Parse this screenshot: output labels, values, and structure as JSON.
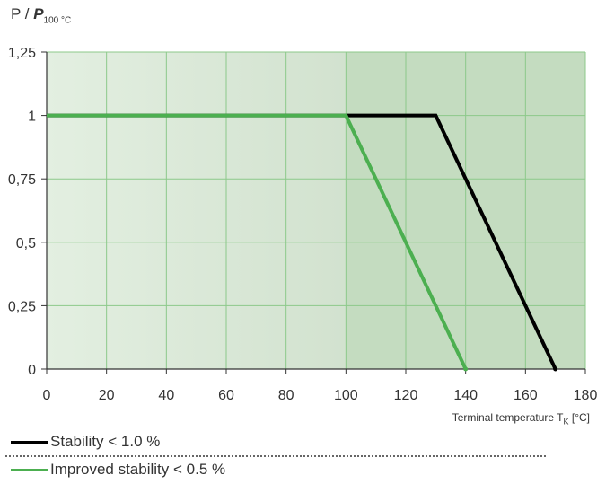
{
  "chart_data": {
    "type": "line",
    "ylabel": {
      "main": "P / ",
      "italic": "P",
      "sub": "100 °C"
    },
    "xlabel": {
      "main": "Terminal temperature T",
      "sub": "K",
      "unit": " [°C]"
    },
    "xlim": [
      0,
      180
    ],
    "ylim": [
      0,
      1.25
    ],
    "x_ticks": [
      "0",
      "20",
      "40",
      "60",
      "80",
      "100",
      "120",
      "140",
      "160",
      "180"
    ],
    "y_ticks": [
      "0",
      "0,25",
      "0,5",
      "0,75",
      "1",
      "1,25"
    ],
    "grid": true,
    "background_bands": {
      "light_until_x": 100
    },
    "series": [
      {
        "name": "Stability < 1.0 %",
        "color": "#000000",
        "points": [
          [
            0,
            1
          ],
          [
            130,
            1
          ],
          [
            170,
            0
          ]
        ]
      },
      {
        "name": "Improved stability < 0.5 %",
        "color": "#4caf50",
        "points": [
          [
            0,
            1
          ],
          [
            100,
            1
          ],
          [
            140,
            0
          ]
        ]
      }
    ]
  },
  "colors": {
    "bg_left": "#e2eee0",
    "bg_mid": "#d4e4d2",
    "bg_right": "#c4dcc0",
    "grid": "#8cc98a",
    "axis": "#333333"
  }
}
